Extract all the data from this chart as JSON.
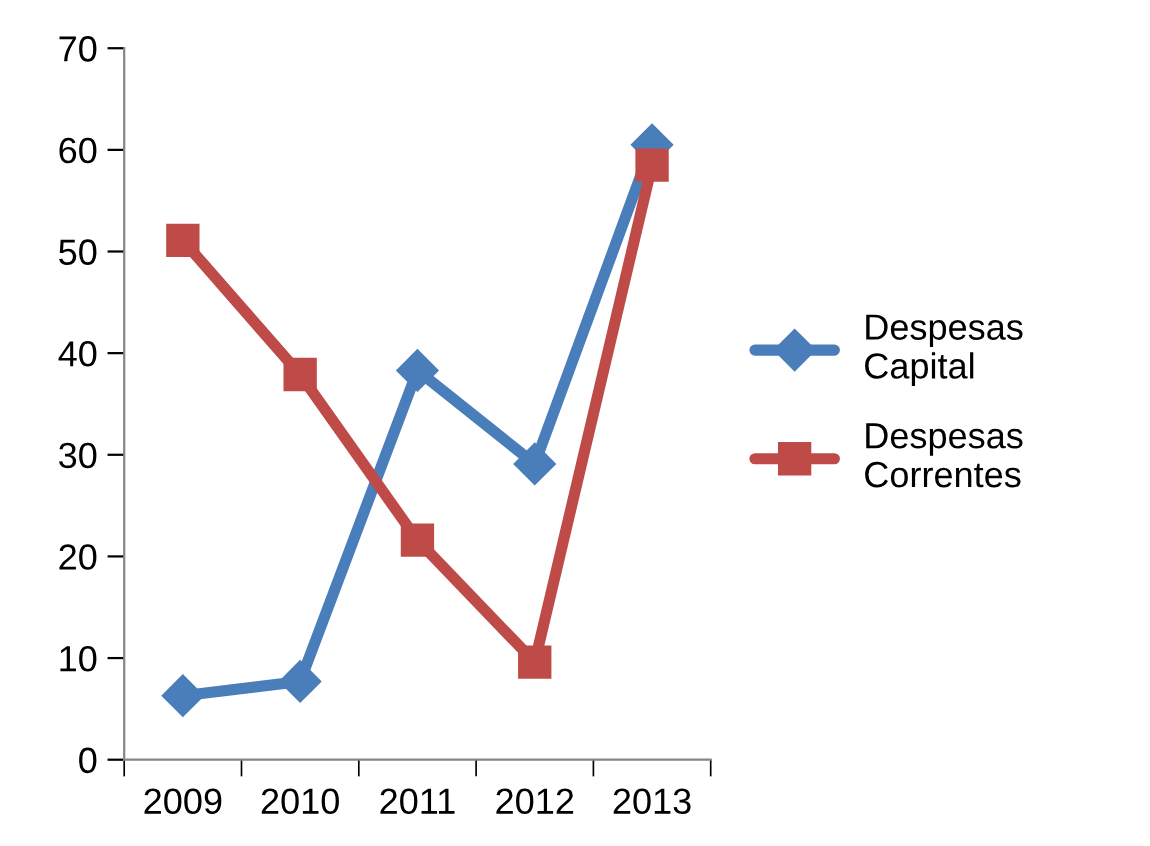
{
  "chart_data": {
    "type": "line",
    "categories": [
      "2009",
      "2010",
      "2011",
      "2012",
      "2013"
    ],
    "series": [
      {
        "name": "Despesas\nCapital",
        "color": "#4a7ebb",
        "marker": "diamond",
        "values": [
          6.3,
          7.7,
          38.3,
          29.1,
          60.5
        ]
      },
      {
        "name": "Despesas\nCorrentes",
        "color": "#be4b48",
        "marker": "square",
        "values": [
          51.1,
          37.9,
          21.6,
          9.6,
          58.5
        ]
      }
    ],
    "ylim": [
      0,
      70
    ],
    "yticks": [
      0,
      10,
      20,
      30,
      40,
      50,
      60,
      70
    ],
    "grid": false,
    "legend": "right",
    "line_style": "solid"
  }
}
